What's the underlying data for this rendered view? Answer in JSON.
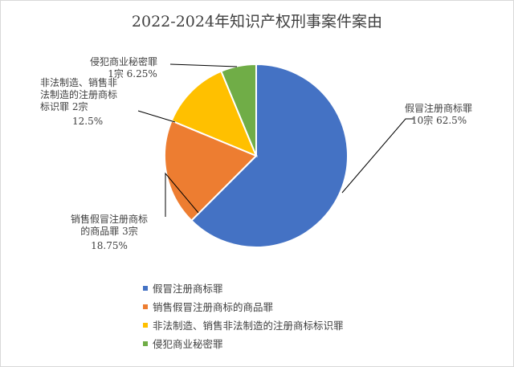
{
  "chart_data": {
    "type": "pie",
    "title": "2022-2024年知识产权刑事案件案由",
    "slices": [
      {
        "name": "假冒注册商标罪",
        "value": 10,
        "percent": "62.5%",
        "label_a": "假冒注册商标罪",
        "label_b": "10宗 62.5%",
        "label_c": "",
        "color": "#4472c4"
      },
      {
        "name": "销售假冒注册商标的商品罪",
        "value": 3,
        "percent": "18.75%",
        "label_a": "销售假冒注册商标",
        "label_b": "的商品罪   3宗",
        "label_c": "18.75%",
        "color": "#ed7d31"
      },
      {
        "name": "非法制造、销售非法制造的注册商标标识罪",
        "value": 2,
        "percent": "12.5%",
        "label_a": "非法制造、销售非",
        "label_b": "法制造的注册商标",
        "label_c": "标识罪      2宗",
        "label_d": "12.5%",
        "color": "#ffc000"
      },
      {
        "name": "侵犯商业秘密罪",
        "value": 1,
        "percent": "6.25%",
        "label_a": "侵犯商业秘密罪",
        "label_b": "1宗 6.25%",
        "label_c": "",
        "color": "#70ad47"
      }
    ],
    "legend_position": "bottom-left"
  }
}
